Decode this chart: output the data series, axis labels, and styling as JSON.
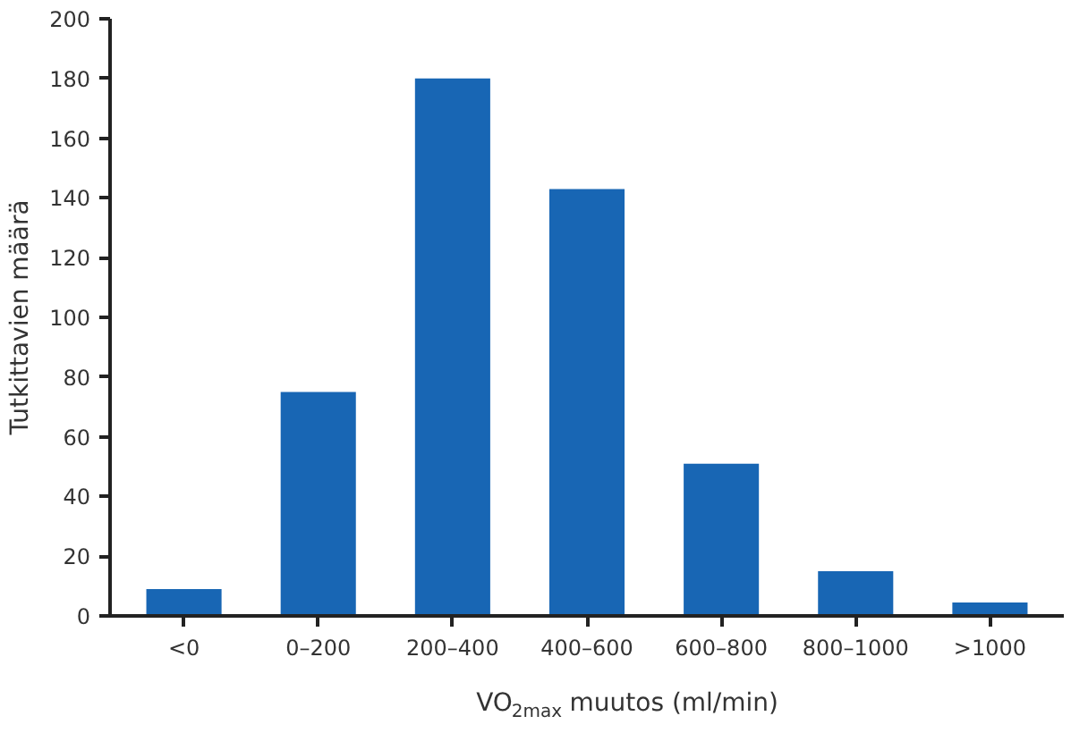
{
  "chart_data": {
    "type": "bar",
    "xlabel": "VO$_{2max}$ muutos (ml/min)",
    "ylabel": "Tutkittavien määrä",
    "categories": [
      "<0",
      "0–200",
      "200–400",
      "400–600",
      "600–800",
      "800–1000",
      ">1000"
    ],
    "values": [
      9,
      75,
      180,
      143,
      51,
      15,
      4.5
    ],
    "color": "#1866b4",
    "ylim": [
      0,
      200
    ],
    "yticks": [
      0,
      20,
      40,
      60,
      80,
      100,
      120,
      140,
      160,
      180,
      200
    ],
    "grid": false
  }
}
